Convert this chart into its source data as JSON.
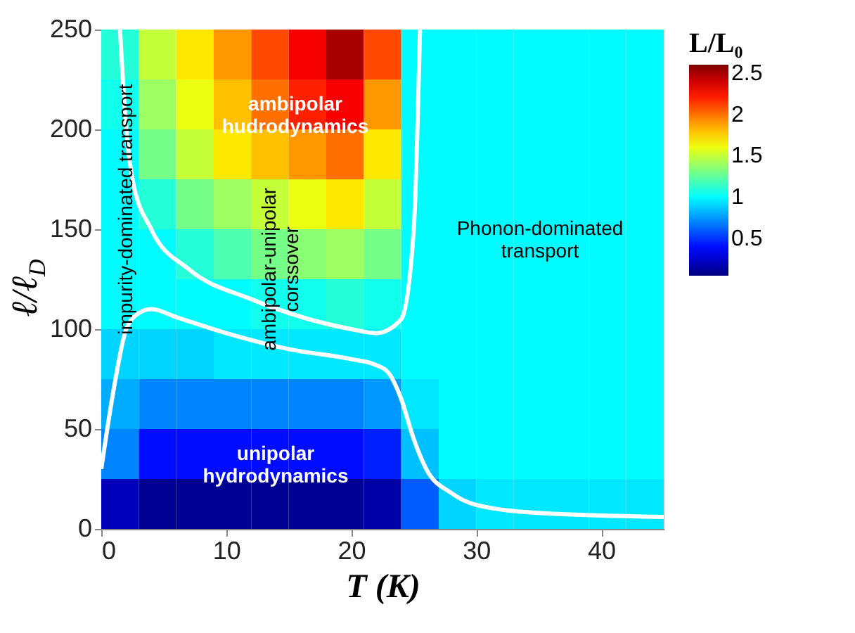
{
  "chart_data": {
    "type": "heatmap",
    "xlabel": "T (K)",
    "ylabel": "ℓ/ℓ$_{D}$",
    "clabel": "L/L₀",
    "xlim": [
      0,
      45
    ],
    "ylim": [
      0,
      250
    ],
    "xticks": [
      0,
      10,
      20,
      30,
      40
    ],
    "yticks": [
      0,
      50,
      100,
      150,
      200,
      250
    ],
    "clim": [
      0.05,
      2.6
    ],
    "cticks": [
      0.5,
      1,
      1.5,
      2,
      2.5
    ],
    "cells": [
      [
        1.1,
        1.5,
        1.7,
        1.9,
        2.1,
        2.3,
        2.5,
        2.1,
        1.0,
        1.0,
        1.0,
        1.0,
        1.0,
        1.0,
        1.0
      ],
      [
        1.05,
        1.4,
        1.6,
        1.8,
        2.0,
        2.2,
        2.3,
        1.9,
        1.0,
        1.0,
        1.0,
        1.0,
        1.0,
        1.0,
        1.0
      ],
      [
        1.0,
        1.3,
        1.5,
        1.7,
        1.8,
        1.9,
        2.0,
        1.7,
        1.0,
        1.0,
        1.0,
        1.0,
        1.0,
        1.0,
        1.0
      ],
      [
        1.0,
        1.1,
        1.3,
        1.4,
        1.5,
        1.6,
        1.7,
        1.5,
        1.0,
        1.0,
        1.0,
        1.0,
        1.0,
        1.0,
        1.0
      ],
      [
        1.0,
        1.0,
        1.1,
        1.2,
        1.3,
        1.35,
        1.4,
        1.3,
        1.0,
        1.0,
        1.0,
        1.0,
        1.0,
        1.0,
        1.0
      ],
      [
        1.0,
        1.0,
        1.0,
        1.0,
        1.05,
        1.05,
        1.1,
        1.05,
        1.0,
        1.0,
        1.0,
        1.0,
        1.0,
        1.0,
        1.0
      ],
      [
        0.9,
        0.9,
        0.9,
        0.95,
        0.95,
        0.95,
        0.95,
        0.95,
        1.0,
        1.0,
        1.0,
        1.0,
        1.0,
        1.0,
        1.0
      ],
      [
        0.8,
        0.7,
        0.7,
        0.7,
        0.7,
        0.7,
        0.7,
        0.75,
        0.95,
        1.0,
        1.0,
        1.0,
        1.0,
        1.0,
        1.0
      ],
      [
        0.7,
        0.4,
        0.4,
        0.4,
        0.4,
        0.4,
        0.4,
        0.45,
        0.85,
        1.0,
        1.0,
        1.0,
        1.0,
        1.0,
        1.0
      ],
      [
        0.2,
        0.1,
        0.1,
        0.1,
        0.1,
        0.1,
        0.1,
        0.15,
        0.6,
        0.9,
        0.95,
        0.95,
        0.95,
        0.95,
        0.95
      ]
    ],
    "series": [
      {
        "type": "line",
        "color": "#ffffff",
        "x": [
          1.5,
          2,
          2.5,
          4,
          7,
          12,
          20,
          22,
          24,
          25,
          25.5
        ],
        "values": [
          250,
          200,
          175,
          150,
          130,
          115,
          100,
          98,
          105,
          150,
          250
        ]
      },
      {
        "type": "line",
        "color": "#ffffff",
        "x": [
          0,
          1,
          2,
          3,
          4,
          6,
          10,
          15,
          20,
          22,
          23,
          24,
          25,
          26,
          28,
          30,
          35,
          45
        ],
        "values": [
          30,
          70,
          100,
          108,
          110,
          106,
          98,
          90,
          85,
          82,
          78,
          65,
          45,
          30,
          18,
          12,
          8,
          6
        ]
      }
    ],
    "annotations": [
      "ambipolar\nhudrodynamics",
      "impurity-dominated transport",
      "ambipolar-unipolar\ncorssover",
      "Phonon-dominated\ntransport",
      "unipolar\nhydrodynamics"
    ]
  }
}
